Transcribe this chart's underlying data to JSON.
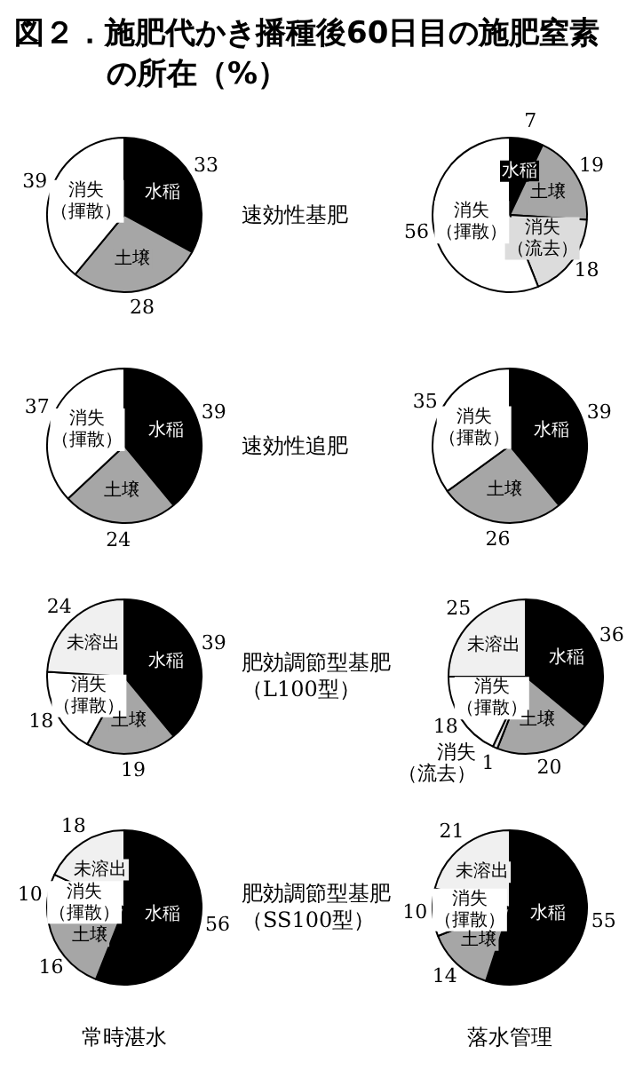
{
  "chart_data": [
    {
      "type": "pie",
      "title": "図２．施肥代かき播種後60日目の施肥窒素の所在（%）",
      "annotations": [
        "速効性基肥"
      ],
      "categories": [
        "水稲",
        "土壌",
        "消失（揮散）"
      ],
      "values": [
        33,
        28,
        39
      ],
      "colors": [
        "#000000",
        "#a6a6a6",
        "#ffffff"
      ],
      "data_labels": true
    },
    {
      "type": "pie",
      "categories": [
        "水稲",
        "土壌",
        "消失（流去）",
        "消失（揮散）"
      ],
      "values": [
        7,
        19,
        18,
        56
      ],
      "colors": [
        "#000000",
        "#a6a6a6",
        "#dcdcdc",
        "#ffffff"
      ],
      "data_labels": true
    },
    {
      "type": "pie",
      "annotations": [
        "速効性追肥"
      ],
      "categories": [
        "水稲",
        "土壌",
        "消失（揮散）"
      ],
      "values": [
        39,
        24,
        37
      ],
      "colors": [
        "#000000",
        "#a6a6a6",
        "#ffffff"
      ],
      "data_labels": true
    },
    {
      "type": "pie",
      "categories": [
        "水稲",
        "土壌",
        "消失（揮散）"
      ],
      "values": [
        39,
        26,
        35
      ],
      "colors": [
        "#000000",
        "#a6a6a6",
        "#ffffff"
      ],
      "data_labels": true
    },
    {
      "type": "pie",
      "annotations": [
        "肥効調節型基肥（L100型）"
      ],
      "categories": [
        "水稲",
        "土壌",
        "消失（揮散）",
        "未溶出"
      ],
      "values": [
        39,
        19,
        18,
        24
      ],
      "colors": [
        "#000000",
        "#a6a6a6",
        "#ffffff",
        "#f0f0f0"
      ],
      "data_labels": true
    },
    {
      "type": "pie",
      "categories": [
        "水稲",
        "土壌",
        "消失（流去）",
        "消失（揮散）",
        "未溶出"
      ],
      "values": [
        36,
        20,
        1,
        18,
        25
      ],
      "colors": [
        "#000000",
        "#a6a6a6",
        "#dcdcdc",
        "#ffffff",
        "#f0f0f0"
      ],
      "data_labels": true
    },
    {
      "type": "pie",
      "annotations": [
        "肥効調節型基肥（SS100型）"
      ],
      "xlabel": "常時湛水",
      "categories": [
        "水稲",
        "土壌",
        "消失（揮散）",
        "未溶出"
      ],
      "values": [
        56,
        16,
        10,
        18
      ],
      "colors": [
        "#000000",
        "#a6a6a6",
        "#ffffff",
        "#f0f0f0"
      ],
      "data_labels": true
    },
    {
      "type": "pie",
      "xlabel": "落水管理",
      "categories": [
        "水稲",
        "土壌",
        "消失（揮散）",
        "未溶出"
      ],
      "values": [
        55,
        14,
        10,
        21
      ],
      "colors": [
        "#000000",
        "#a6a6a6",
        "#ffffff",
        "#f0f0f0"
      ],
      "data_labels": true
    }
  ]
}
